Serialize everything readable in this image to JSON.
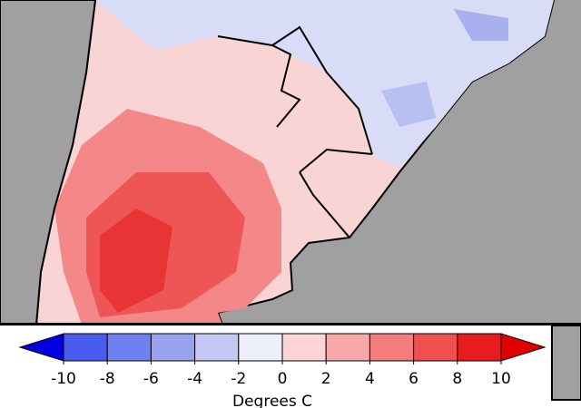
{
  "colorbar": {
    "ticks": [
      -10,
      -8,
      -6,
      -4,
      -2,
      0,
      2,
      4,
      6,
      8,
      10
    ],
    "colors": [
      "#0000e0",
      "#4a5cf0",
      "#7080f0",
      "#98a4f0",
      "#c4c8f4",
      "#eceef8",
      "#fcd4d4",
      "#f8a8a8",
      "#f47c7c",
      "#f05050",
      "#e81c1c",
      "#e00000"
    ],
    "label": "Degrees C"
  }
}
